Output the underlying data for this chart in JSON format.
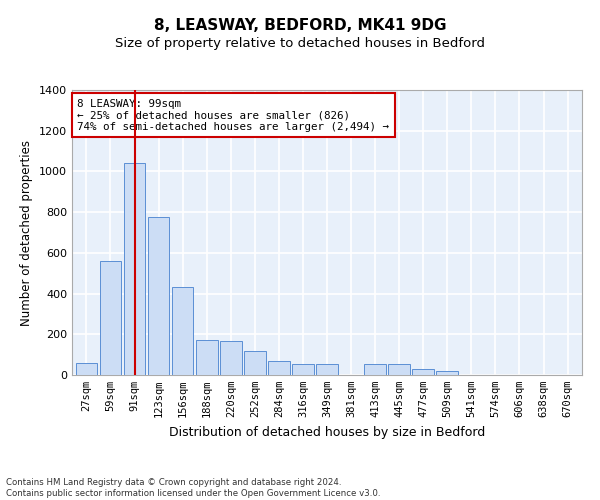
{
  "title": "8, LEASWAY, BEDFORD, MK41 9DG",
  "subtitle": "Size of property relative to detached houses in Bedford",
  "xlabel": "Distribution of detached houses by size in Bedford",
  "ylabel": "Number of detached properties",
  "categories": [
    "27sqm",
    "59sqm",
    "91sqm",
    "123sqm",
    "156sqm",
    "188sqm",
    "220sqm",
    "252sqm",
    "284sqm",
    "316sqm",
    "349sqm",
    "381sqm",
    "413sqm",
    "445sqm",
    "477sqm",
    "509sqm",
    "541sqm",
    "574sqm",
    "606sqm",
    "638sqm",
    "670sqm"
  ],
  "values": [
    57,
    560,
    1040,
    775,
    430,
    170,
    165,
    120,
    70,
    55,
    55,
    0,
    55,
    55,
    30,
    20,
    0,
    0,
    0,
    0,
    0
  ],
  "bar_color": "#ccddf5",
  "bar_edge_color": "#5b8fd4",
  "vline_x": 2,
  "vline_color": "#cc0000",
  "annotation_text": "8 LEASWAY: 99sqm\n← 25% of detached houses are smaller (826)\n74% of semi-detached houses are larger (2,494) →",
  "annotation_box_facecolor": "#ffffff",
  "annotation_box_edgecolor": "#cc0000",
  "ylim": [
    0,
    1400
  ],
  "yticks": [
    0,
    200,
    400,
    600,
    800,
    1000,
    1200,
    1400
  ],
  "footer_text": "Contains HM Land Registry data © Crown copyright and database right 2024.\nContains public sector information licensed under the Open Government Licence v3.0.",
  "bg_color": "#e8f0fa",
  "grid_color": "#ffffff",
  "title_fontsize": 11,
  "subtitle_fontsize": 9.5,
  "tick_fontsize": 7.5,
  "ylabel_fontsize": 8.5,
  "xlabel_fontsize": 9
}
